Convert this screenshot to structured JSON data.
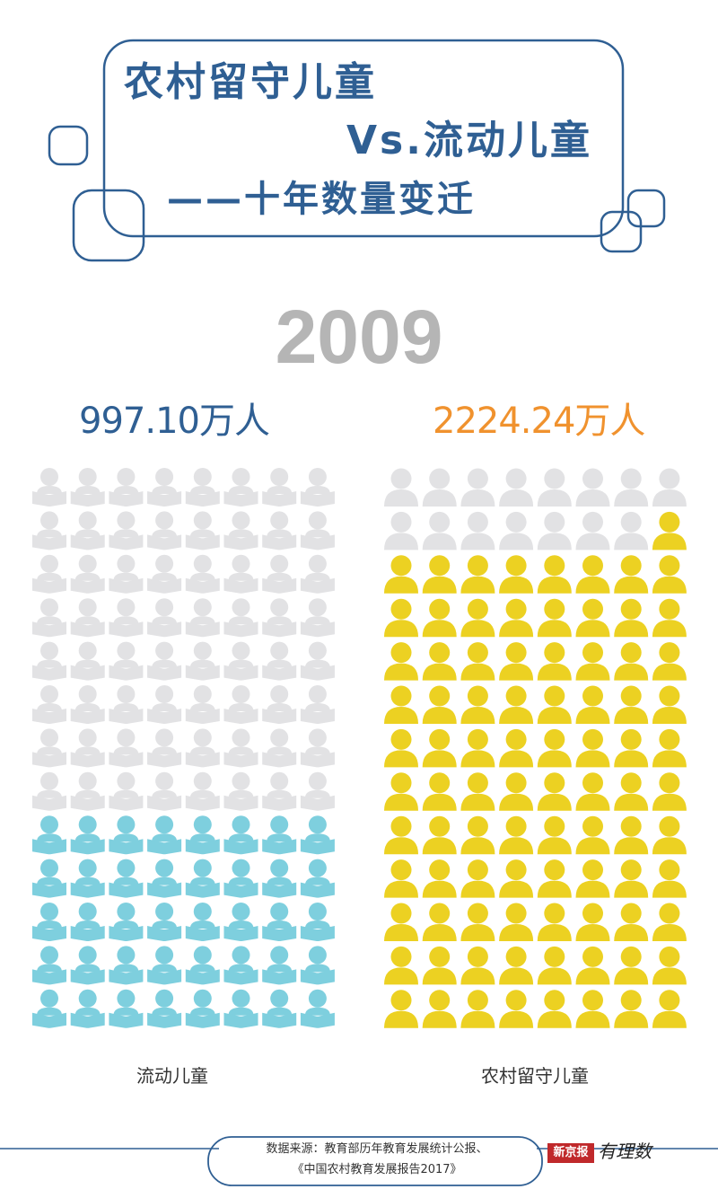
{
  "header": {
    "title_line1": "农村留守儿童",
    "title_line2": "Vs.流动儿童",
    "title_line3": "——十年数量变迁"
  },
  "colors": {
    "frame": "#2f5f93",
    "title": "#2f5f93",
    "year": "#b5b5b5",
    "empty_icon": "#e2e2e4",
    "migrant_icon": "#7ecfde",
    "leftbehind_icon": "#ecd122",
    "migrant_count": "#2f5f93",
    "leftbehind_count": "#f0922e"
  },
  "chart_data": {
    "type": "pictogram",
    "year": "2009",
    "series": [
      {
        "name": "流动儿童",
        "value_label": "997.10万人",
        "value": 997.1,
        "unit": "万人",
        "icon": "child-reading-book-icon",
        "grid_columns": 8,
        "grid_rows": 13,
        "filled_icons": 40
      },
      {
        "name": "农村留守儿童",
        "value_label": "2224.24万人",
        "value": 2224.24,
        "unit": "万人",
        "icon": "person-icon",
        "grid_columns": 8,
        "grid_rows": 13,
        "filled_icons": 89
      }
    ]
  },
  "footer": {
    "source_line1": "数据来源：教育部历年教育发展统计公报、",
    "source_line2": "《中国农村教育发展报告2017》",
    "logo_text": "新京报",
    "logo_script": "有理数"
  }
}
